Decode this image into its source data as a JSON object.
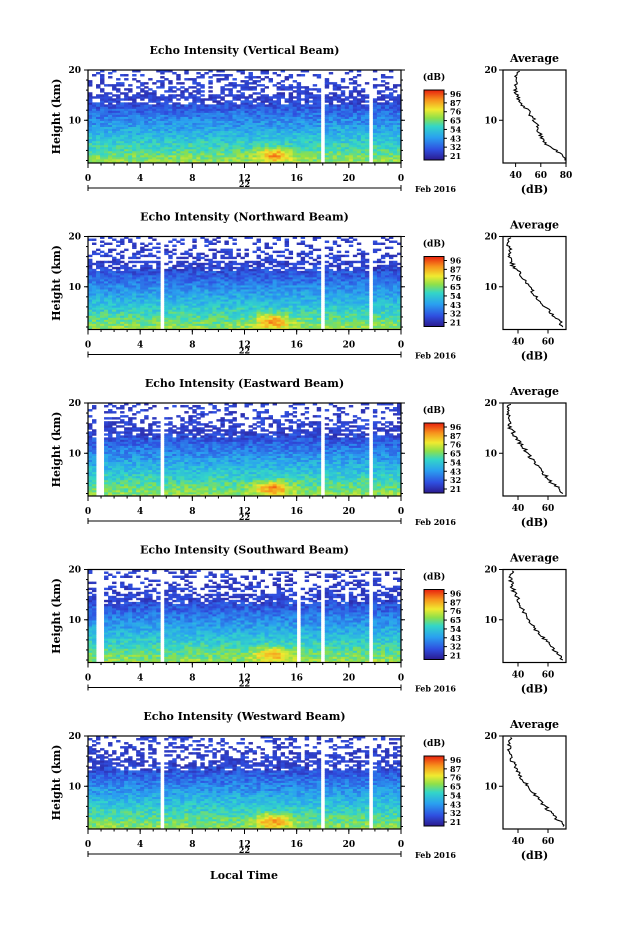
{
  "figure": {
    "xlabel": "Local Time",
    "date_label": "Feb 2016",
    "day_label": "22"
  },
  "chart_data": [
    {
      "type": "heatmap",
      "title": "Echo Intensity (Vertical Beam)",
      "ylabel": "Height (km)",
      "xlim": [
        0,
        24
      ],
      "ylim": [
        1.5,
        20
      ],
      "x_ticks": [
        "0",
        "4",
        "8",
        "12",
        "16",
        "20",
        "0"
      ],
      "y_ticks": [
        "10",
        "20"
      ],
      "colorbar": {
        "unit": "(dB)",
        "ticks": [
          "96",
          "87",
          "76",
          "65",
          "54",
          "43",
          "32",
          "21"
        ],
        "range": [
          21,
          96
        ]
      },
      "gaps_hours": [
        17.9,
        21.6
      ],
      "profile": {
        "title": "Average",
        "xlabel": "(dB)",
        "x_ticks": [
          "40",
          "60",
          "80"
        ],
        "xlim": [
          30,
          80
        ],
        "height_km": [
          2,
          3,
          4,
          5,
          6,
          7,
          8,
          9,
          10,
          11,
          12,
          13,
          14,
          15,
          16,
          17,
          18,
          19,
          20
        ],
        "value_db": [
          80,
          78,
          72,
          65,
          62,
          60,
          58,
          57,
          55,
          52,
          50,
          45,
          43,
          41,
          40,
          40,
          40,
          41,
          43
        ]
      }
    },
    {
      "type": "heatmap",
      "title": "Echo Intensity (Northward Beam)",
      "ylabel": "Height (km)",
      "xlim": [
        0,
        24
      ],
      "ylim": [
        1.5,
        20
      ],
      "x_ticks": [
        "0",
        "4",
        "8",
        "12",
        "16",
        "20",
        "0"
      ],
      "y_ticks": [
        "10",
        "20"
      ],
      "colorbar": {
        "unit": "(dB)",
        "ticks": [
          "96",
          "87",
          "76",
          "65",
          "54",
          "43",
          "32",
          "21"
        ],
        "range": [
          21,
          96
        ]
      },
      "gaps_hours": [
        5.8,
        17.9,
        21.6
      ],
      "profile": {
        "title": "Average",
        "xlabel": "(dB)",
        "x_ticks": [
          "40",
          "60"
        ],
        "xlim": [
          30,
          72
        ],
        "height_km": [
          2,
          3,
          4,
          5,
          6,
          7,
          8,
          9,
          10,
          11,
          12,
          13,
          14,
          15,
          16,
          17,
          18,
          19,
          20
        ],
        "value_db": [
          70,
          68,
          64,
          62,
          58,
          55,
          52,
          50,
          47,
          45,
          42,
          40,
          37,
          36,
          35,
          35,
          34,
          34,
          35
        ]
      }
    },
    {
      "type": "heatmap",
      "title": "Echo Intensity (Eastward Beam)",
      "ylabel": "Height (km)",
      "xlim": [
        0,
        24
      ],
      "ylim": [
        1.5,
        20
      ],
      "x_ticks": [
        "0",
        "4",
        "8",
        "12",
        "16",
        "20",
        "0"
      ],
      "y_ticks": [
        "10",
        "20"
      ],
      "colorbar": {
        "unit": "(dB)",
        "ticks": [
          "96",
          "87",
          "76",
          "65",
          "54",
          "43",
          "32",
          "21"
        ],
        "range": [
          21,
          96
        ]
      },
      "gaps_hours": [
        0.9,
        5.8,
        17.9,
        21.6
      ],
      "profile": {
        "title": "Average",
        "xlabel": "(dB)",
        "x_ticks": [
          "40",
          "60"
        ],
        "xlim": [
          30,
          72
        ],
        "height_km": [
          2,
          3,
          4,
          5,
          6,
          7,
          8,
          9,
          10,
          11,
          12,
          13,
          14,
          15,
          16,
          17,
          18,
          19,
          20
        ],
        "value_db": [
          70,
          67,
          63,
          60,
          57,
          54,
          51,
          49,
          46,
          44,
          41,
          39,
          37,
          35,
          34,
          34,
          33,
          34,
          35
        ]
      }
    },
    {
      "type": "heatmap",
      "title": "Echo Intensity (Southward Beam)",
      "ylabel": "Height (km)",
      "xlim": [
        0,
        24
      ],
      "ylim": [
        1.5,
        20
      ],
      "x_ticks": [
        "0",
        "4",
        "8",
        "12",
        "16",
        "20",
        "0"
      ],
      "y_ticks": [
        "10",
        "20"
      ],
      "colorbar": {
        "unit": "(dB)",
        "ticks": [
          "96",
          "87",
          "76",
          "65",
          "54",
          "43",
          "32",
          "21"
        ],
        "range": [
          21,
          96
        ]
      },
      "gaps_hours": [
        0.9,
        5.8,
        16.2,
        17.9,
        21.6
      ],
      "profile": {
        "title": "Average",
        "xlabel": "(dB)",
        "x_ticks": [
          "40",
          "60"
        ],
        "xlim": [
          30,
          72
        ],
        "height_km": [
          2,
          3,
          4,
          5,
          6,
          7,
          8,
          9,
          10,
          11,
          12,
          13,
          14,
          15,
          16,
          17,
          18,
          19,
          20
        ],
        "value_db": [
          70,
          68,
          64,
          61,
          58,
          55,
          52,
          50,
          47,
          45,
          43,
          41,
          40,
          38,
          37,
          36,
          35,
          35,
          36
        ]
      }
    },
    {
      "type": "heatmap",
      "title": "Echo Intensity (Westward Beam)",
      "ylabel": "Height (km)",
      "xlim": [
        0,
        24
      ],
      "ylim": [
        1.5,
        20
      ],
      "x_ticks": [
        "0",
        "4",
        "8",
        "12",
        "16",
        "20",
        "0"
      ],
      "y_ticks": [
        "10",
        "20"
      ],
      "colorbar": {
        "unit": "(dB)",
        "ticks": [
          "96",
          "87",
          "76",
          "65",
          "54",
          "43",
          "32",
          "21"
        ],
        "range": [
          21,
          96
        ]
      },
      "gaps_hours": [
        5.8,
        17.9,
        21.6
      ],
      "profile": {
        "title": "Average",
        "xlabel": "(dB)",
        "x_ticks": [
          "40",
          "60"
        ],
        "xlim": [
          30,
          72
        ],
        "height_km": [
          2,
          3,
          4,
          5,
          6,
          7,
          8,
          9,
          10,
          11,
          12,
          13,
          14,
          15,
          16,
          17,
          18,
          19,
          20
        ],
        "value_db": [
          70,
          68,
          64,
          61,
          58,
          55,
          52,
          49,
          47,
          44,
          42,
          40,
          38,
          36,
          35,
          34,
          34,
          34,
          35
        ]
      }
    }
  ]
}
